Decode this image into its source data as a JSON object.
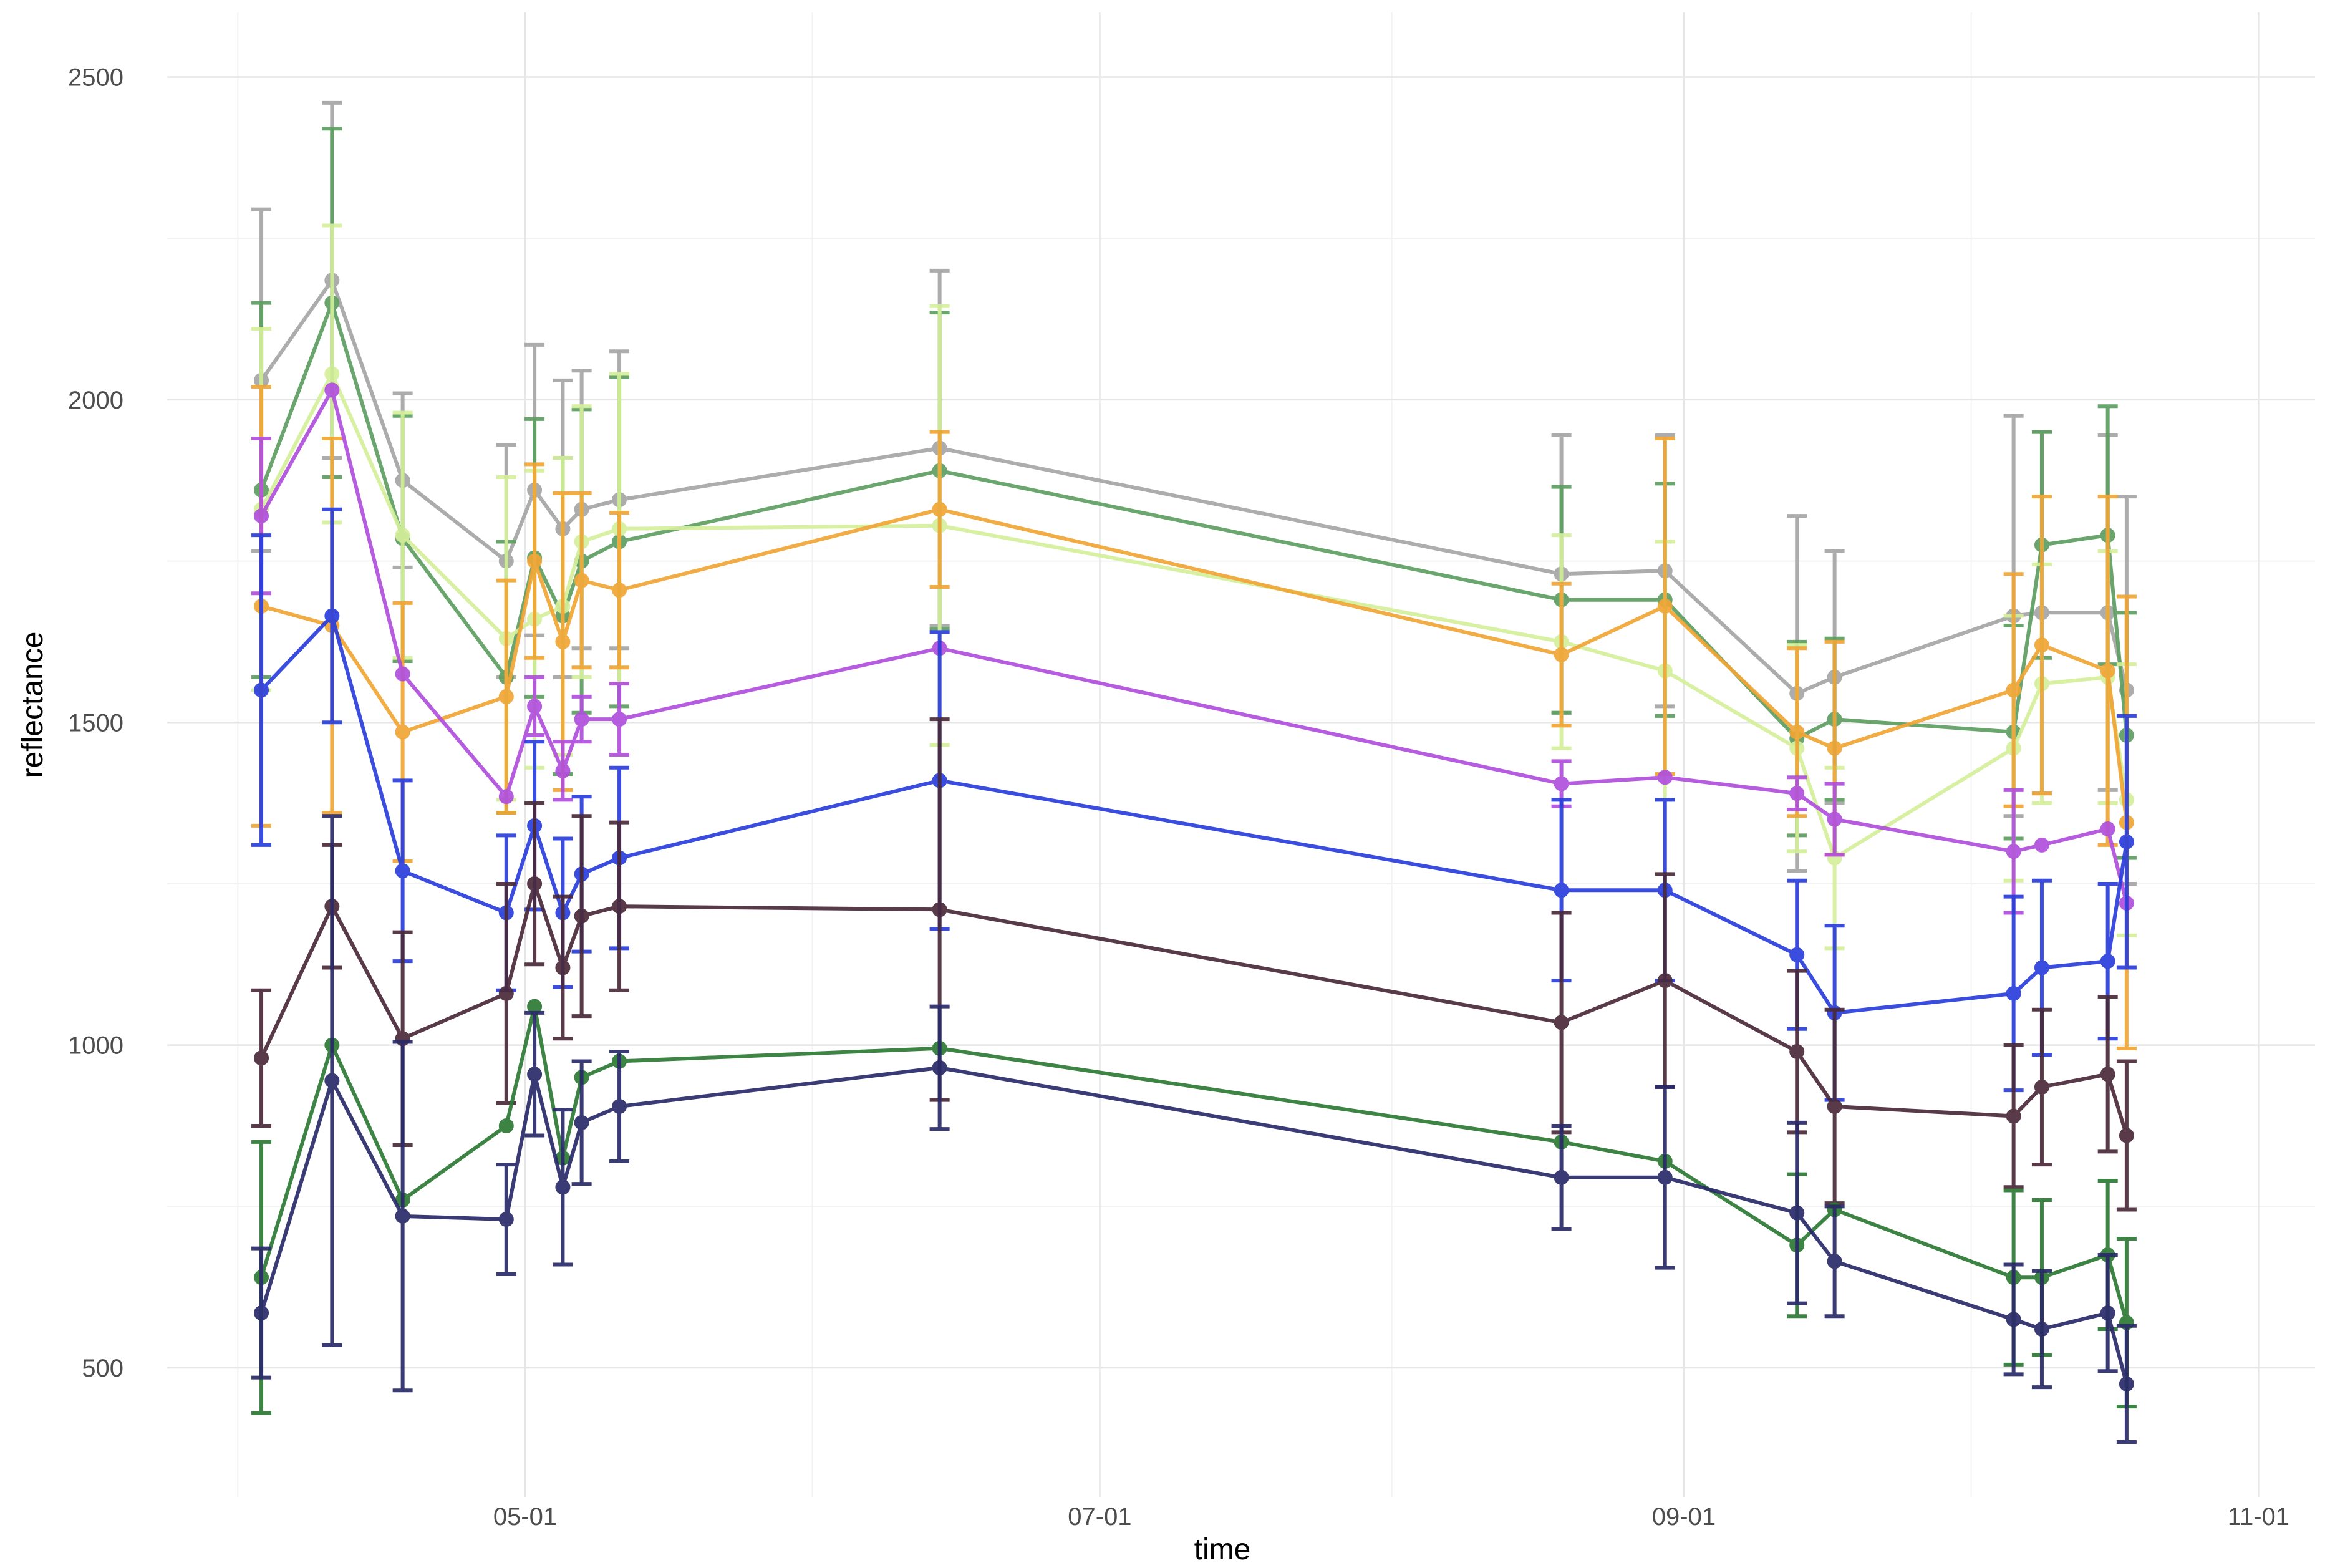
{
  "chart_data": {
    "type": "line",
    "title": "",
    "xlabel": "time",
    "ylabel": "reflectance",
    "ylim": [
      300,
      2600
    ],
    "yticks": [
      500,
      1000,
      1500,
      2000,
      2500
    ],
    "ytick_labels": [
      "500",
      "1000",
      "1500",
      "2000",
      "2500"
    ],
    "xlim": [
      83.0,
      311.0
    ],
    "xticks": [
      121,
      182,
      244,
      305
    ],
    "xtick_labels": [
      "05-01",
      "07-01",
      "09-01",
      "11-01"
    ],
    "x_minor": [
      90.5,
      151.5,
      213,
      274.5
    ],
    "grid": true,
    "legend": "none",
    "x": [
      93,
      100.5,
      108,
      119,
      122,
      125,
      127,
      131,
      165,
      231,
      242,
      256,
      260,
      268,
      279,
      282,
      289,
      291
    ],
    "series": [
      {
        "name": "gray",
        "color": "#a6a6a6",
        "values": [
          2030,
          2185,
          1875,
          1750,
          1860,
          1800,
          1830,
          1845,
          1925,
          1730,
          1735,
          1545,
          1570,
          null,
          1665,
          1670,
          1670,
          1550
        ],
        "errors": [
          265,
          275,
          135,
          180,
          225,
          230,
          215,
          230,
          275,
          215,
          210,
          275,
          195,
          null,
          310,
          280,
          275,
          300
        ]
      },
      {
        "name": "green",
        "color": "#5d9e61",
        "values": [
          1860,
          2150,
          1785,
          1570,
          1755,
          1665,
          1750,
          1780,
          1890,
          1690,
          1690,
          1475,
          1505,
          null,
          1485,
          1775,
          1790,
          1480
        ],
        "errors": [
          290,
          270,
          190,
          210,
          215,
          245,
          235,
          255,
          245,
          175,
          180,
          150,
          125,
          null,
          165,
          175,
          200,
          190
        ]
      },
      {
        "name": "lightgreen",
        "color": "#d4ef9a",
        "values": [
          1830,
          2040,
          1790,
          1630,
          1660,
          1680,
          1780,
          1800,
          1805,
          1625,
          1580,
          1460,
          1290,
          null,
          1460,
          1560,
          1570,
          1380
        ],
        "errors": [
          280,
          230,
          190,
          250,
          230,
          230,
          210,
          240,
          340,
          165,
          200,
          160,
          140,
          null,
          205,
          185,
          195,
          210
        ]
      },
      {
        "name": "orange",
        "color": "#f0a535",
        "values": [
          1680,
          1650,
          1485,
          1540,
          1750,
          1625,
          1720,
          1705,
          1830,
          1605,
          1680,
          1485,
          1460,
          null,
          1550,
          1620,
          1580,
          1345
        ],
        "errors": [
          340,
          290,
          200,
          180,
          150,
          230,
          135,
          120,
          120,
          110,
          260,
          130,
          165,
          null,
          180,
          230,
          270,
          350
        ]
      },
      {
        "name": "purple",
        "color": "#b04fdc",
        "values": [
          1820,
          2015,
          1575,
          1385,
          1525,
          1425,
          1505,
          1505,
          1615,
          1405,
          1415,
          1390,
          1350,
          null,
          1300,
          1310,
          1335,
          1220
        ],
        "errors": [
          120,
          0,
          0,
          0,
          45,
          45,
          35,
          55,
          0,
          35,
          0,
          25,
          55,
          null,
          95,
          0,
          0,
          0
        ]
      },
      {
        "name": "blue",
        "color": "#2a3edc",
        "values": [
          1550,
          1665,
          1270,
          1205,
          1340,
          1205,
          1265,
          1290,
          1410,
          1240,
          1240,
          1140,
          1050,
          null,
          1080,
          1120,
          1130,
          1315
        ],
        "errors": [
          240,
          165,
          140,
          120,
          130,
          115,
          120,
          140,
          230,
          140,
          140,
          115,
          135,
          null,
          150,
          135,
          120,
          195
        ]
      },
      {
        "name": "darkmaroon",
        "color": "#4a2a3a",
        "values": [
          980,
          1215,
          1010,
          1080,
          1250,
          1120,
          1200,
          1215,
          1210,
          1035,
          1100,
          990,
          905,
          null,
          890,
          935,
          955,
          860
        ],
        "errors": [
          105,
          95,
          165,
          170,
          125,
          110,
          155,
          130,
          295,
          170,
          165,
          125,
          150,
          null,
          110,
          120,
          120,
          115
        ]
      },
      {
        "name": "darkgreen",
        "color": "#2d7a35",
        "values": [
          640,
          1000,
          760,
          875,
          1060,
          825,
          950,
          975,
          995,
          850,
          820,
          690,
          745,
          null,
          640,
          640,
          675,
          570
        ],
        "errors": [
          210,
          0,
          0,
          0,
          0,
          0,
          0,
          0,
          0,
          0,
          0,
          110,
          0,
          null,
          135,
          120,
          115,
          130
        ]
      },
      {
        "name": "navy",
        "color": "#2a2a6a",
        "values": [
          585,
          945,
          735,
          730,
          955,
          780,
          880,
          905,
          965,
          795,
          795,
          740,
          665,
          null,
          575,
          560,
          585,
          475
        ],
        "errors": [
          100,
          410,
          270,
          85,
          95,
          120,
          95,
          85,
          95,
          80,
          140,
          140,
          85,
          null,
          85,
          90,
          90,
          90
        ]
      }
    ]
  }
}
